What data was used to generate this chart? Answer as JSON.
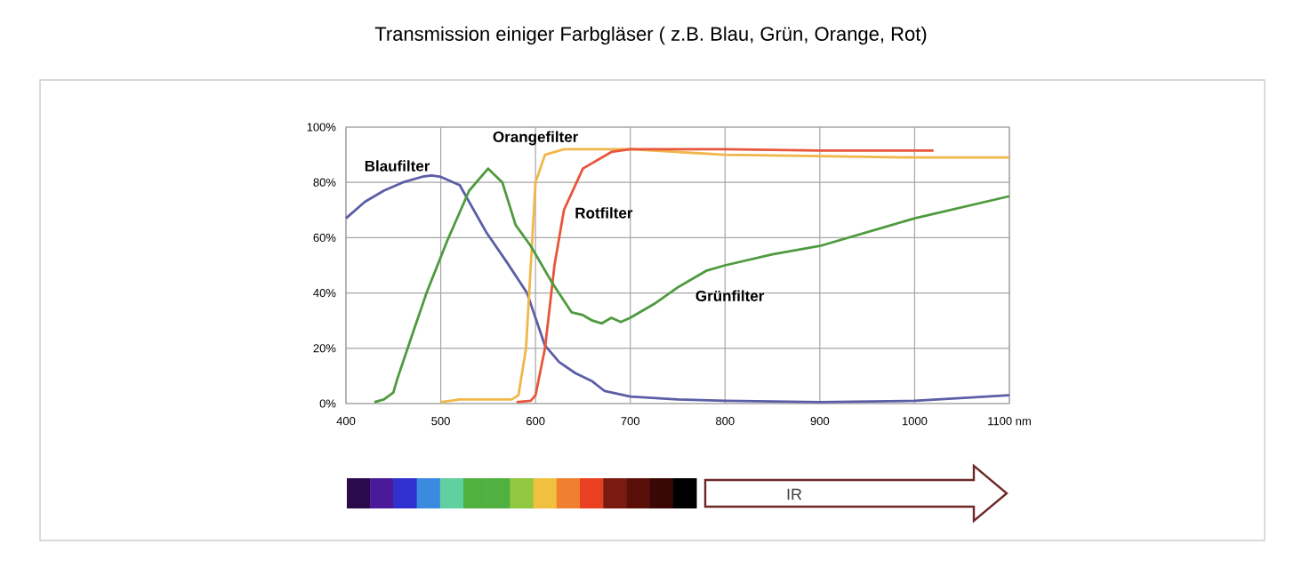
{
  "chart_data": {
    "type": "line",
    "title": "Transmission einiger Farbgläser ( z.B. Blau, Grün, Orange, Rot)",
    "xlim": [
      400,
      1100
    ],
    "ylim": [
      0,
      100
    ],
    "xticks": [
      400,
      500,
      600,
      700,
      800,
      900,
      1000,
      {
        "value": 1100,
        "label": "1100 nm"
      }
    ],
    "yticks": [
      {
        "value": 0,
        "label": "0%"
      },
      {
        "value": 20,
        "label": "20%"
      },
      {
        "value": 40,
        "label": "40%"
      },
      {
        "value": 60,
        "label": "60%"
      },
      {
        "value": 80,
        "label": "80%"
      },
      {
        "value": 100,
        "label": "100%"
      }
    ],
    "grid": true,
    "annotations": [
      "IR"
    ],
    "series": [
      {
        "name": "Blaufilter",
        "color": "#5b5ea6",
        "x": [
          400,
          420,
          440,
          460,
          480,
          490,
          500,
          520,
          548,
          570,
          591,
          610,
          625,
          642,
          660,
          673,
          700,
          750,
          800,
          900,
          1000,
          1100
        ],
        "values": [
          67,
          73,
          77,
          80,
          82,
          82.5,
          82,
          79,
          62,
          51,
          40,
          21,
          15,
          11,
          8,
          4.5,
          2.5,
          1.5,
          1,
          0.5,
          1,
          3
        ]
      },
      {
        "name": "Orangefilter",
        "color": "#f0b74a",
        "x": [
          500,
          520,
          550,
          575,
          582,
          590,
          595,
          600,
          610,
          630,
          700,
          800,
          900,
          1000,
          1100
        ],
        "values": [
          0.5,
          1.5,
          1.5,
          1.5,
          3,
          20,
          50,
          80,
          90,
          92,
          92,
          90,
          89.5,
          89,
          89
        ]
      },
      {
        "name": "Rotfilter",
        "color": "#e8553a",
        "x": [
          580,
          595,
          600,
          610,
          620,
          630,
          650,
          680,
          700,
          800,
          900,
          1020
        ],
        "values": [
          0.5,
          1,
          3,
          20,
          50,
          70,
          85,
          91,
          92,
          92,
          91.5,
          91.5
        ]
      },
      {
        "name": "Grünfilter",
        "color": "#4e9a3e",
        "x": [
          430,
          440,
          450,
          454,
          470,
          485,
          507,
          530,
          550,
          565,
          579,
          595,
          617,
          638,
          650,
          660,
          670,
          680,
          690,
          700,
          725,
          750,
          780,
          800,
          850,
          900,
          1000,
          1100
        ],
        "values": [
          0.5,
          1.5,
          4,
          8.7,
          25,
          40,
          59,
          77,
          85,
          80,
          64.6,
          57,
          44,
          33,
          32,
          30,
          29,
          31,
          29.5,
          31,
          36,
          42,
          48,
          50,
          54,
          57,
          67,
          75
        ]
      }
    ]
  }
}
